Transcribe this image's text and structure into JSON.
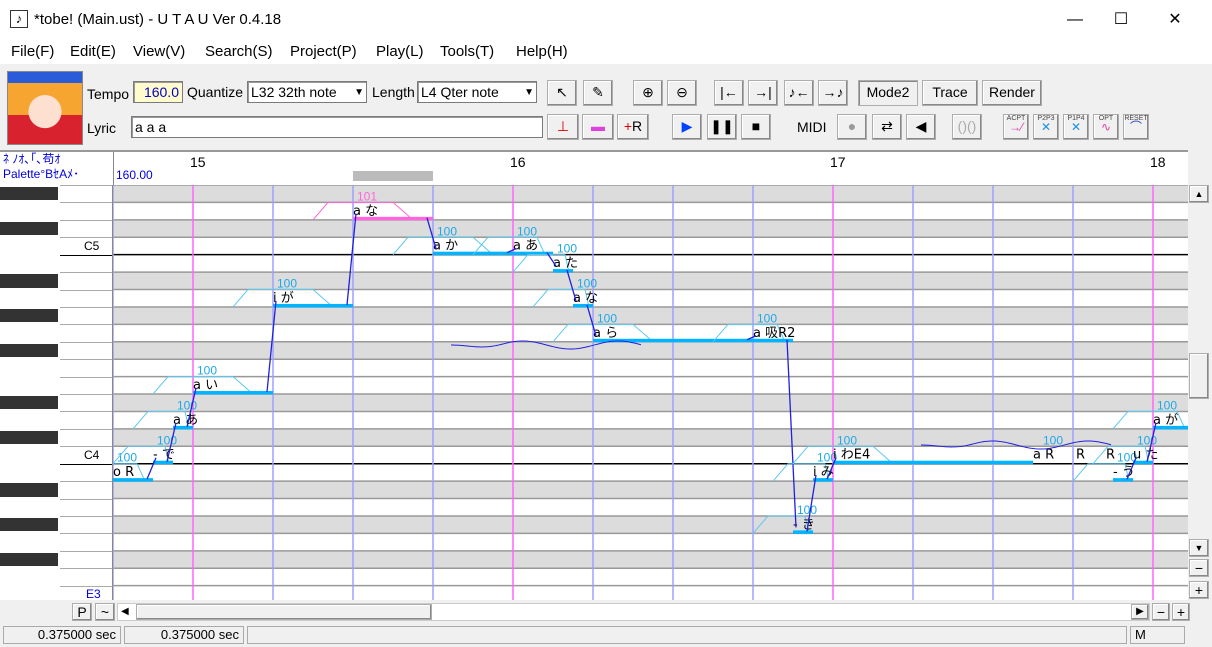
{
  "window": {
    "title": "*tobe! (Main.ust) - U T A U Ver 0.4.18",
    "minimize": "—",
    "maximize": "☐",
    "close": "✕"
  },
  "menu": [
    "File(F)",
    "Edit(E)",
    "View(V)",
    "Search(S)",
    "Project(P)",
    "Play(L)",
    "Tools(T)",
    "Help(H)"
  ],
  "toolbar": {
    "tempo_label": "Tempo",
    "tempo_value": "160.0",
    "quantize_label": "Quantize",
    "quantize_value": "L32 32th note",
    "length_label": "Length",
    "length_value": "L4  Qter note",
    "lyric_label": "Lyric",
    "lyric_value": "a a a",
    "mode2": "Mode2",
    "trace": "Trace",
    "render": "Render",
    "midi": "MIDI",
    "plugin_labels": [
      "ACPT",
      "P2P3",
      "P1P4",
      "OPT",
      "RESET"
    ]
  },
  "header": {
    "line1": "ﾈ ﾉｵ､｢､苟ｵ",
    "line2": "Palette°BｾAﾒ･",
    "tempo": "160.00",
    "measures": [
      "15",
      "16",
      "17",
      "18"
    ]
  },
  "piano_labels": {
    "c5": "C5",
    "c4": "C4",
    "e3": "E3"
  },
  "notes": [
    {
      "lyric": "R",
      "prefix": "o",
      "pitch": "B3",
      "start_tick": 26400,
      "length_tick": 240,
      "velocity": "100"
    },
    {
      "lyric": "で",
      "prefix": "-",
      "pitch": "C4",
      "start_tick": 26640,
      "length_tick": 120,
      "velocity": "100"
    },
    {
      "lyric": "あ",
      "prefix": "a",
      "pitch": "D4",
      "start_tick": 26760,
      "length_tick": 120,
      "velocity": "100"
    },
    {
      "lyric": "い",
      "prefix": "a",
      "pitch": "E4",
      "start_tick": 26880,
      "length_tick": 480,
      "velocity": "100"
    },
    {
      "lyric": "が",
      "prefix": "i",
      "pitch": "A4",
      "start_tick": 27360,
      "length_tick": 480,
      "velocity": "100"
    },
    {
      "lyric": "な",
      "prefix": "a",
      "pitch": "D5",
      "start_tick": 27840,
      "length_tick": 480,
      "velocity": "101",
      "selected": true
    },
    {
      "lyric": "か",
      "prefix": "a",
      "pitch": "C5",
      "start_tick": 28320,
      "length_tick": 480,
      "velocity": "100"
    },
    {
      "lyric": "あ",
      "prefix": "a",
      "pitch": "C5",
      "start_tick": 28800,
      "length_tick": 240,
      "velocity": "100"
    },
    {
      "lyric": "た",
      "prefix": "a",
      "pitch": "B4",
      "start_tick": 29040,
      "length_tick": 120,
      "velocity": "100"
    },
    {
      "lyric": "な",
      "prefix": "a",
      "pitch": "A4",
      "start_tick": 29160,
      "length_tick": 120,
      "velocity": "100"
    },
    {
      "lyric": "ら",
      "prefix": "a",
      "pitch": "G4",
      "start_tick": 29280,
      "length_tick": 960,
      "velocity": "100"
    },
    {
      "lyric": "吸R2",
      "prefix": "a",
      "pitch": "G4",
      "start_tick": 30240,
      "length_tick": 240,
      "velocity": "100"
    },
    {
      "lyric": "き",
      "prefix": "-",
      "pitch": "G#3",
      "start_tick": 30480,
      "length_tick": 120,
      "velocity": "100"
    },
    {
      "lyric": "み",
      "prefix": "i",
      "pitch": "B3",
      "start_tick": 30600,
      "length_tick": 120,
      "velocity": "100"
    },
    {
      "lyric": "わE4",
      "prefix": "i",
      "pitch": "C4",
      "start_tick": 30720,
      "length_tick": 1200,
      "velocity": "100"
    },
    {
      "lyric": "R",
      "prefix": "a",
      "pitch": "C4",
      "start_tick": 31920,
      "length_tick": 240,
      "velocity": "100",
      "rest": true
    },
    {
      "lyric": "R",
      "prefix": "",
      "pitch": "C4",
      "start_tick": 32160,
      "length_tick": 180,
      "velocity": "",
      "rest": true
    },
    {
      "lyric": "R",
      "prefix": "",
      "pitch": "C4",
      "start_tick": 32340,
      "length_tick": 60,
      "velocity": "",
      "rest": true
    },
    {
      "lyric": "う",
      "prefix": "-",
      "pitch": "B3",
      "start_tick": 32400,
      "length_tick": 120,
      "velocity": "100"
    },
    {
      "lyric": "た",
      "prefix": "u",
      "pitch": "C4",
      "start_tick": 32520,
      "length_tick": 120,
      "velocity": "100"
    },
    {
      "lyric": "が",
      "prefix": "a",
      "pitch": "D4",
      "start_tick": 32640,
      "length_tick": 240,
      "velocity": "100"
    }
  ],
  "statusbar": {
    "left": "0.375000 sec",
    "mid": "0.375000 sec",
    "mode": "M"
  },
  "bottom": {
    "p": "P",
    "tilde": "~",
    "minus": "−",
    "plus": "+"
  },
  "colors": {
    "note_bar": "#00b4ff",
    "selected": "#ff66dd",
    "measure_line": "#ff66ff",
    "beat_line": "#a0a0ff",
    "pitch": "#2020e0",
    "velocity": "#1fa8e8"
  }
}
